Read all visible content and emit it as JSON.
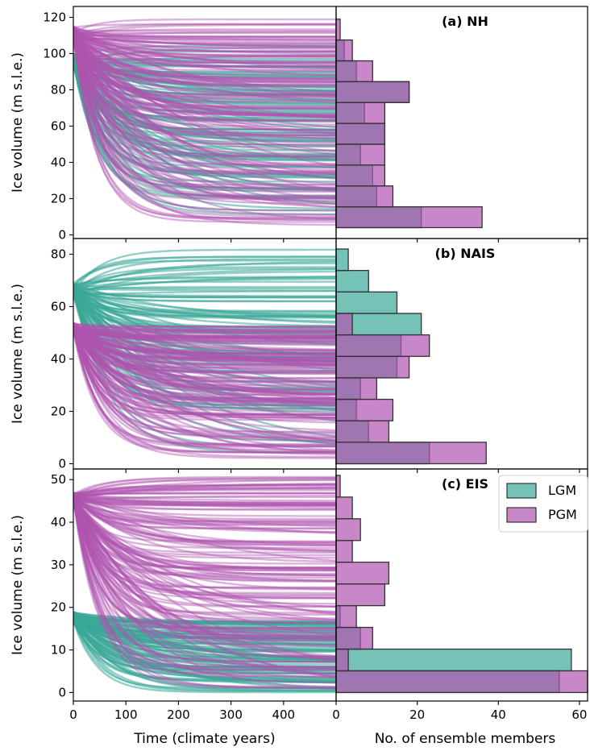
{
  "colors": {
    "lgm": "#3aa897",
    "pgm": "#b054b0",
    "edge": "#333333"
  },
  "legend": {
    "entries": [
      "LGM",
      "PGM"
    ],
    "placement": "upper-right of panel (c)"
  },
  "x_tick_labels": [
    "0",
    "100",
    "200",
    "300",
    "400"
  ],
  "hist_tick_labels": [
    "0",
    "20",
    "40",
    "60"
  ],
  "chart_data": [
    {
      "type": "line",
      "panel": "ice-volume trajectories and ensemble histogram",
      "title": "(a) NH",
      "xlabel": "",
      "ylabel": "Ice volume (m s.l.e.)",
      "xlim": [
        0,
        500
      ],
      "ylim": [
        -2,
        126
      ],
      "yticks": [
        0,
        20,
        40,
        60,
        80,
        100,
        120
      ],
      "series": [
        {
          "name": "LGM",
          "start_range": [
            93,
            100
          ],
          "end_range": [
            10,
            105
          ],
          "trajectory_count": 100
        },
        {
          "name": "PGM",
          "start_range": [
            108,
            115
          ],
          "end_range": [
            5,
            120
          ],
          "trajectory_count": 150
        }
      ],
      "histogram": {
        "type": "bar",
        "orientation": "horizontal",
        "xlabel": "",
        "xlim": [
          0,
          62
        ],
        "bin_width": 11.5,
        "bin_edges": [
          4,
          15.5,
          27,
          38.5,
          50,
          61.5,
          73,
          84.5,
          96,
          107.5,
          119
        ],
        "LGM": [
          21,
          10,
          9,
          6,
          12,
          7,
          18,
          5,
          2,
          0
        ],
        "PGM": [
          36,
          14,
          12,
          12,
          12,
          12,
          18,
          9,
          4,
          1
        ]
      }
    },
    {
      "type": "line",
      "title": "(b) NAIS",
      "xlabel": "",
      "ylabel": "Ice volume (m s.l.e.)",
      "xlim": [
        0,
        500
      ],
      "ylim": [
        -2,
        86
      ],
      "yticks": [
        0,
        20,
        40,
        60,
        80
      ],
      "series": [
        {
          "name": "LGM",
          "start_range": [
            64,
            69
          ],
          "end_range": [
            3,
            82
          ],
          "trajectory_count": 100
        },
        {
          "name": "PGM",
          "start_range": [
            50,
            54
          ],
          "end_range": [
            2,
            53
          ],
          "trajectory_count": 150
        }
      ],
      "histogram": {
        "type": "bar",
        "orientation": "horizontal",
        "xlabel": "",
        "xlim": [
          0,
          62
        ],
        "bin_width": 8.2,
        "bin_edges": [
          0,
          8.2,
          16.4,
          24.6,
          32.8,
          41,
          49.2,
          57.4,
          65.6,
          73.8,
          82
        ],
        "LGM": [
          23,
          8,
          5,
          6,
          15,
          16,
          21,
          15,
          8,
          3
        ],
        "PGM": [
          37,
          13,
          14,
          10,
          18,
          23,
          4,
          0,
          0,
          0
        ]
      }
    },
    {
      "type": "line",
      "title": "(c) EIS",
      "xlabel": "Time (climate years)",
      "ylabel": "Ice volume (m s.l.e.)",
      "xlim": [
        0,
        500
      ],
      "ylim": [
        -2,
        52.5
      ],
      "yticks": [
        0,
        10,
        20,
        30,
        40,
        50
      ],
      "series": [
        {
          "name": "LGM",
          "start_range": [
            16.5,
            19
          ],
          "end_range": [
            0,
            17
          ],
          "trajectory_count": 100
        },
        {
          "name": "PGM",
          "start_range": [
            45,
            47
          ],
          "end_range": [
            0,
            51
          ],
          "trajectory_count": 150
        }
      ],
      "histogram": {
        "type": "bar",
        "orientation": "horizontal",
        "xlabel": "No. of ensemble members",
        "xlim": [
          0,
          62
        ],
        "bin_width": 5.1,
        "bin_edges": [
          0,
          5.1,
          10.2,
          15.3,
          20.4,
          25.5,
          30.6,
          35.7,
          40.8,
          45.9,
          51
        ],
        "LGM": [
          55,
          58,
          6,
          1,
          0,
          0,
          0,
          0,
          0,
          0
        ],
        "PGM": [
          62,
          3,
          9,
          5,
          12,
          13,
          4,
          6,
          4,
          1
        ]
      }
    }
  ]
}
